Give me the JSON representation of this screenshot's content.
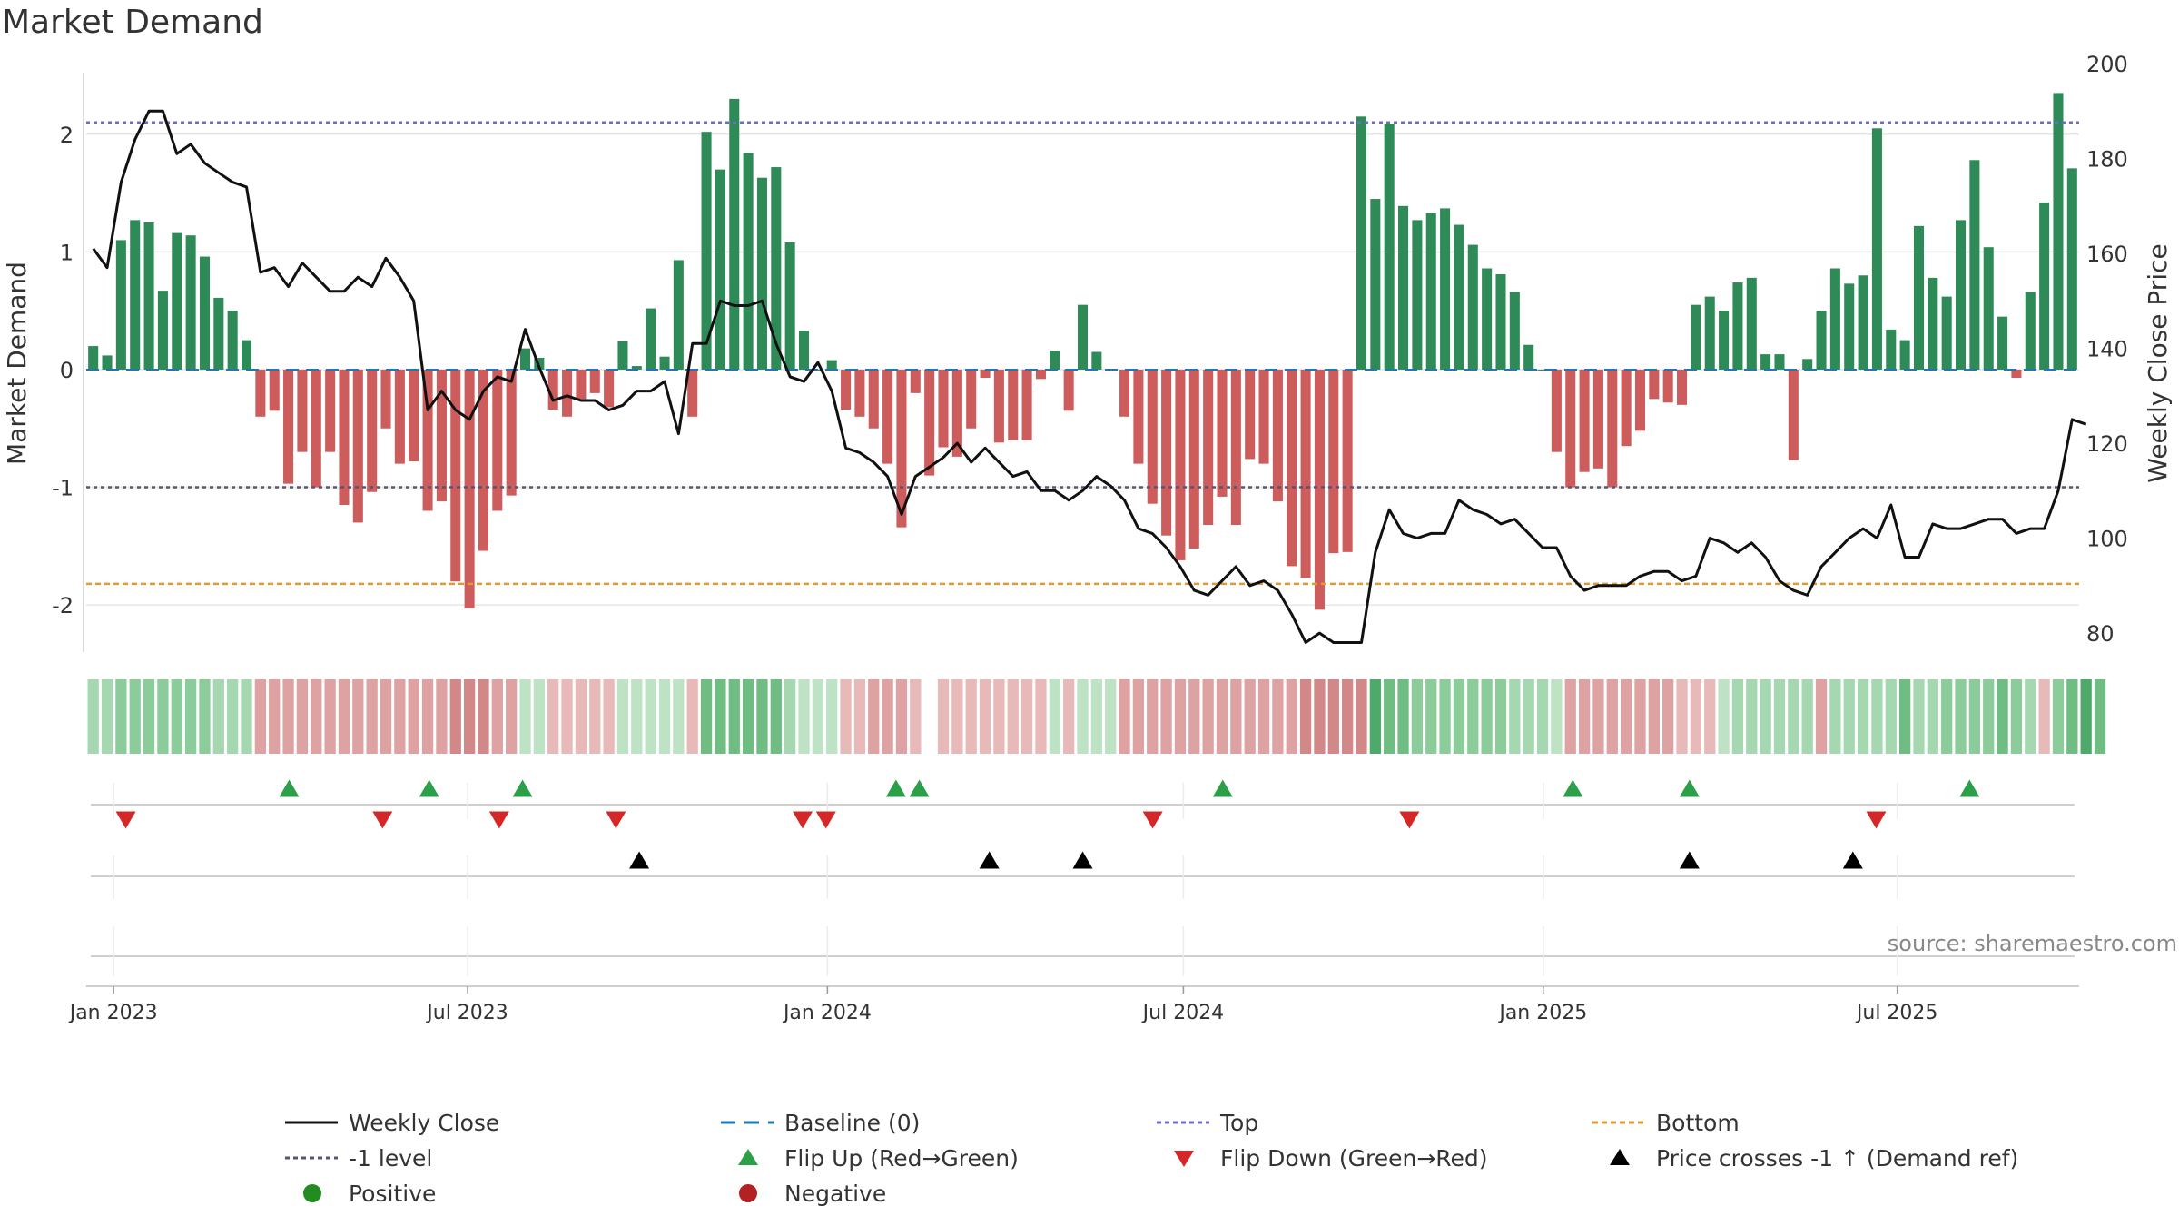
{
  "chart_data": {
    "type": "bar",
    "title": "Market Demand",
    "ylabel": "Market Demand",
    "y2label": "Weekly Close Price",
    "ylim": [
      -2.4,
      2.6
    ],
    "y2lim": [
      76,
      200
    ],
    "yticks": [
      -2,
      -1,
      0,
      1,
      2
    ],
    "y2ticks": [
      80,
      100,
      120,
      140,
      160,
      180,
      200
    ],
    "x_start": "2022-12-18",
    "x_step_days": 7,
    "x_end": "2025-10-02",
    "xticks": [
      {
        "label": "Jan 2023",
        "date": "2023-01-01"
      },
      {
        "label": "Jul 2023",
        "date": "2023-07-01"
      },
      {
        "label": "Jan 2024",
        "date": "2024-01-01"
      },
      {
        "label": "Jul 2024",
        "date": "2024-07-01"
      },
      {
        "label": "Jan 2025",
        "date": "2025-01-01"
      },
      {
        "label": "Jul 2025",
        "date": "2025-07-01"
      }
    ],
    "levels": {
      "top": 2.1,
      "minus_one": -1.0,
      "bottom": -1.82,
      "baseline": 0
    },
    "demand": [
      0.2,
      0.12,
      1.1,
      1.27,
      1.25,
      0.67,
      1.16,
      1.14,
      0.96,
      0.61,
      0.5,
      0.25,
      -0.4,
      -0.35,
      -0.97,
      -0.7,
      -1.0,
      -0.7,
      -1.15,
      -1.3,
      -1.04,
      -0.5,
      -0.8,
      -0.78,
      -1.2,
      -1.12,
      -1.8,
      -2.03,
      -1.54,
      -1.2,
      -1.07,
      0.18,
      0.1,
      -0.34,
      -0.4,
      -0.25,
      -0.2,
      -0.32,
      0.24,
      0.03,
      0.52,
      0.11,
      0.93,
      -0.4,
      2.02,
      1.7,
      2.3,
      1.84,
      1.63,
      1.72,
      1.08,
      0.33,
      0.0,
      0.08,
      -0.34,
      -0.4,
      -0.5,
      -0.8,
      -1.34,
      -0.2,
      -0.9,
      -0.66,
      -0.74,
      -0.5,
      -0.07,
      -0.62,
      -0.6,
      -0.6,
      -0.08,
      0.16,
      -0.35,
      0.55,
      0.15,
      0.0,
      -0.4,
      -0.8,
      -1.14,
      -1.41,
      -1.62,
      -1.52,
      -1.32,
      -1.08,
      -1.32,
      -0.76,
      -0.8,
      -1.12,
      -1.67,
      -1.77,
      -2.04,
      -1.56,
      -1.55,
      2.15,
      1.45,
      2.09,
      1.39,
      1.27,
      1.33,
      1.37,
      1.23,
      1.06,
      0.86,
      0.81,
      0.66,
      0.21,
      0.0,
      -0.7,
      -1.0,
      -0.87,
      -0.84,
      -1.0,
      -0.65,
      -0.52,
      -0.25,
      -0.28,
      -0.3,
      0.55,
      0.62,
      0.5,
      0.74,
      0.78,
      0.13,
      0.13,
      -0.77,
      0.09,
      0.5,
      0.86,
      0.73,
      0.8,
      2.05,
      0.34,
      0.25,
      1.22,
      0.78,
      0.62,
      1.27,
      1.78,
      1.04,
      0.45,
      -0.07,
      0.66,
      1.42,
      2.35,
      1.71
    ],
    "close": [
      161,
      157,
      175,
      184,
      190,
      190,
      181,
      183,
      179,
      177,
      175,
      174,
      156,
      157,
      153,
      158,
      155,
      152,
      152,
      155,
      153,
      159,
      155,
      150,
      127,
      131,
      127,
      125,
      131,
      134,
      133,
      144,
      136,
      129,
      130,
      129,
      129,
      127,
      128,
      131,
      131,
      133,
      122,
      141,
      141,
      150,
      149,
      149,
      150,
      141,
      134,
      133,
      137,
      131,
      119,
      118,
      116,
      113,
      105,
      113,
      115,
      117,
      120,
      116,
      119,
      116,
      113,
      114,
      110,
      110,
      108,
      110,
      113,
      111,
      108,
      102,
      101,
      98,
      94,
      89,
      88,
      91,
      94,
      90,
      91,
      89,
      84,
      78,
      80,
      78,
      78,
      78,
      97,
      106,
      101,
      100,
      101,
      101,
      108,
      106,
      105,
      103,
      104,
      101,
      98,
      98,
      92,
      89,
      90,
      90,
      90,
      92,
      93,
      93,
      91,
      92,
      100,
      99,
      97,
      99,
      96,
      91,
      89,
      88,
      94,
      97,
      100,
      102,
      100,
      107,
      96,
      96,
      103,
      102,
      102,
      103,
      104,
      104,
      101,
      102,
      102,
      110,
      125,
      124
    ],
    "shade": [
      2,
      2,
      3,
      3,
      3,
      3,
      3,
      3,
      3,
      2,
      2,
      2,
      -2,
      -2,
      -2,
      -2,
      -2,
      -2,
      -2,
      -2,
      -2,
      -2,
      -2,
      -2,
      -2,
      -2,
      -3,
      -3,
      -3,
      -2,
      -2,
      1,
      1,
      -1,
      -1,
      -1,
      -1,
      -1,
      1,
      1,
      1,
      1,
      1,
      -1,
      4,
      4,
      4,
      4,
      4,
      4,
      2,
      1,
      1,
      1,
      -1,
      -1,
      -2,
      -2,
      -2,
      -1,
      null,
      -1,
      -1,
      -1,
      -1,
      -1,
      -1,
      -1,
      -1,
      1,
      -1,
      1,
      1,
      1,
      -2,
      -2,
      -2,
      -2,
      -2,
      -2,
      -2,
      -2,
      -2,
      -2,
      -2,
      -2,
      -2,
      -3,
      -3,
      -3,
      -3,
      -3,
      5,
      4,
      4,
      3,
      3,
      3,
      3,
      3,
      3,
      3,
      2,
      2,
      2,
      1,
      -2,
      -2,
      -2,
      -2,
      -2,
      -2,
      -2,
      -2,
      -1,
      -1,
      -1,
      1,
      2,
      2,
      2,
      2,
      2,
      2,
      -2,
      2,
      2,
      2,
      2,
      2,
      4,
      2,
      2,
      3,
      3,
      3,
      3,
      4,
      3,
      2,
      -1,
      3,
      4,
      5,
      4
    ],
    "events": {
      "flip_up": [
        8,
        14,
        18,
        34,
        35,
        48,
        63,
        68,
        80
      ],
      "flip_down": [
        1,
        12,
        17,
        22,
        30,
        31,
        45,
        56,
        76
      ],
      "price_cross": [
        23,
        38,
        42,
        68,
        75
      ]
    },
    "source": "source: sharemaestro.com",
    "legend": [
      {
        "label": "Weekly Close",
        "key": "weekly-close"
      },
      {
        "label": "Baseline (0)",
        "key": "baseline"
      },
      {
        "label": "Top",
        "key": "top"
      },
      {
        "label": "Bottom",
        "key": "bottom"
      },
      {
        "label": "-1 level",
        "key": "minus-one"
      },
      {
        "label": "Flip Up (Red→Green)",
        "key": "flip-up"
      },
      {
        "label": "Flip Down (Green→Red)",
        "key": "flip-down"
      },
      {
        "label": "Price crosses -1 ↑ (Demand ref)",
        "key": "price-cross"
      },
      {
        "label": "Positive",
        "key": "positive"
      },
      {
        "label": "Negative",
        "key": "negative"
      }
    ]
  },
  "colors": {
    "positive_bar": "#2e8b57",
    "negative_bar": "#cd5c5c",
    "price_line": "#111111",
    "baseline": "#1f77b4",
    "top_line": "#6b6bcc",
    "minus_one_line": "#555577",
    "bottom_line": "#e09a30",
    "flip_up": "#2ca048",
    "flip_down": "#d62728",
    "price_cross": "#000000",
    "positive_dot": "#228b22",
    "negative_dot": "#b22222",
    "grid": "#e6e6e6",
    "axis": "#cccccc"
  }
}
